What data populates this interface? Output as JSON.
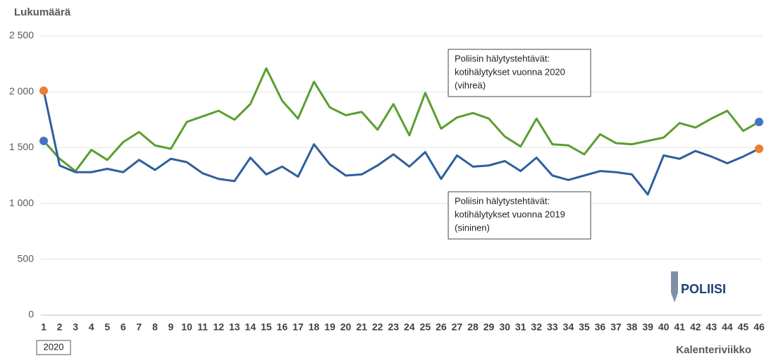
{
  "chart_data": {
    "type": "line",
    "y_label": "Lukumäärä",
    "x_label": "Kalenteriviikko",
    "year_label": "2020",
    "logo": "POLIISI",
    "categories": [
      1,
      2,
      3,
      4,
      5,
      6,
      7,
      8,
      9,
      10,
      11,
      12,
      13,
      14,
      15,
      16,
      17,
      18,
      19,
      20,
      21,
      22,
      23,
      24,
      25,
      26,
      27,
      28,
      29,
      30,
      31,
      32,
      33,
      34,
      35,
      36,
      37,
      38,
      39,
      40,
      41,
      42,
      43,
      44,
      45,
      46
    ],
    "series": [
      {
        "color": "#5b9e30",
        "marker_color": "#4472c4",
        "values": [
          1560,
          1400,
          1290,
          1480,
          1390,
          1550,
          1640,
          1520,
          1490,
          1730,
          1780,
          1830,
          1750,
          1890,
          2210,
          1920,
          1760,
          2090,
          1860,
          1790,
          1820,
          1660,
          1890,
          1610,
          1990,
          1670,
          1770,
          1810,
          1760,
          1600,
          1510,
          1760,
          1530,
          1520,
          1440,
          1620,
          1540,
          1530,
          1560,
          1590,
          1720,
          1680,
          1760,
          1830,
          1650,
          1730
        ]
      },
      {
        "color": "#2e5f9e",
        "marker_color": "#ed7d31",
        "values": [
          2010,
          1340,
          1280,
          1280,
          1310,
          1280,
          1390,
          1300,
          1400,
          1370,
          1270,
          1220,
          1200,
          1410,
          1260,
          1330,
          1240,
          1530,
          1350,
          1250,
          1260,
          1340,
          1440,
          1330,
          1460,
          1220,
          1430,
          1330,
          1340,
          1380,
          1290,
          1410,
          1250,
          1210,
          1250,
          1290,
          1280,
          1260,
          1080,
          1430,
          1400,
          1470,
          1420,
          1360,
          1420,
          1490
        ]
      }
    ],
    "annotations": [
      {
        "lines": [
          "Poliisin hälytystehtävät:",
          "kotihälytykset vuonna 2020",
          "(vihreä)"
        ]
      },
      {
        "lines": [
          "Poliisin hälytystehtävät:",
          "kotihälytykset vuonna 2019",
          "(sininen)"
        ]
      }
    ],
    "ylim": [
      0,
      2500
    ],
    "yticks": [
      0,
      500,
      {
        "value": 1000,
        "label": "1 000"
      },
      {
        "value": 1500,
        "label": "1 500"
      },
      {
        "value": 2000,
        "label": "2 000"
      },
      {
        "value": 2500,
        "label": "2 500"
      }
    ],
    "grid": true
  }
}
